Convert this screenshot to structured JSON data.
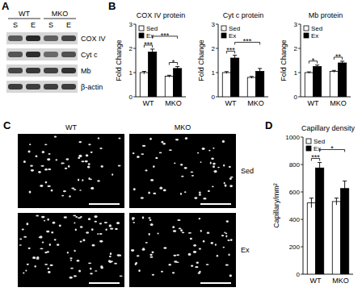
{
  "panel_labels": [
    "A",
    "B",
    "C",
    "D"
  ],
  "panel_a": {
    "groups": [
      "WT",
      "MKO"
    ],
    "lanes": [
      "S",
      "E",
      "S",
      "E"
    ],
    "bands": [
      "COX IV",
      "Cyt c",
      "Mb",
      "β-actin"
    ]
  },
  "panel_c": {
    "columns": [
      "WT",
      "MKO"
    ],
    "rows": [
      "Sed",
      "Ex"
    ]
  },
  "chart_data": [
    {
      "type": "bar",
      "title": "COX IV protein",
      "y_label": "Fold Change",
      "categories": [
        "WT",
        "MKO"
      ],
      "series": [
        {
          "name": "Sed",
          "color": "#ffffff",
          "values": [
            1.0,
            0.85
          ],
          "errors": [
            0.05,
            0.04
          ]
        },
        {
          "name": "Ex",
          "color": "#000000",
          "values": [
            1.85,
            1.17
          ],
          "errors": [
            0.12,
            0.08
          ]
        }
      ],
      "ylim": [
        0,
        3
      ],
      "yticks": [
        0,
        1,
        2,
        3
      ],
      "grid": false,
      "legend": "upper left",
      "annotations": [
        {
          "text": "***",
          "from": [
            "WT",
            "Sed"
          ],
          "to": [
            "WT",
            "Ex"
          ]
        },
        {
          "text": "***",
          "from": [
            "WT",
            "Ex"
          ],
          "to": [
            "MKO",
            "Ex"
          ]
        },
        {
          "text": "*",
          "from": [
            "MKO",
            "Sed"
          ],
          "to": [
            "MKO",
            "Ex"
          ]
        }
      ]
    },
    {
      "type": "bar",
      "title": "Cyt c protein",
      "y_label": "Fold Change",
      "categories": [
        "WT",
        "MKO"
      ],
      "series": [
        {
          "name": "Sed",
          "color": "#ffffff",
          "values": [
            1.0,
            0.8
          ],
          "errors": [
            0.04,
            0.04
          ]
        },
        {
          "name": "Ex",
          "color": "#000000",
          "values": [
            1.6,
            1.05
          ],
          "errors": [
            0.12,
            0.12
          ]
        }
      ],
      "ylim": [
        0,
        3
      ],
      "yticks": [
        0,
        1,
        2,
        3
      ],
      "grid": false,
      "legend": "upper left",
      "annotations": [
        {
          "text": "***",
          "from": [
            "WT",
            "Sed"
          ],
          "to": [
            "WT",
            "Ex"
          ]
        },
        {
          "text": "***",
          "from": [
            "WT",
            "Ex"
          ],
          "to": [
            "MKO",
            "Ex"
          ]
        }
      ]
    },
    {
      "type": "bar",
      "title": "Mb protein",
      "y_label": "Fold Change",
      "categories": [
        "WT",
        "MKO"
      ],
      "series": [
        {
          "name": "Sed",
          "color": "#ffffff",
          "values": [
            1.0,
            1.05
          ],
          "errors": [
            0.03,
            0.04
          ]
        },
        {
          "name": "Ex",
          "color": "#000000",
          "values": [
            1.25,
            1.4
          ],
          "errors": [
            0.06,
            0.07
          ]
        }
      ],
      "ylim": [
        0,
        3
      ],
      "yticks": [
        0,
        1,
        2,
        3
      ],
      "grid": false,
      "legend": "upper left",
      "annotations": [
        {
          "text": "*",
          "from": [
            "WT",
            "Sed"
          ],
          "to": [
            "WT",
            "Ex"
          ]
        },
        {
          "text": "**",
          "from": [
            "MKO",
            "Sed"
          ],
          "to": [
            "MKO",
            "Ex"
          ]
        }
      ]
    },
    {
      "type": "bar",
      "title": "Capillary density",
      "y_label": "Capillary/mm²",
      "categories": [
        "WT",
        "MKO"
      ],
      "series": [
        {
          "name": "Sed",
          "color": "#ffffff",
          "values": [
            520,
            530
          ],
          "errors": [
            35,
            25
          ]
        },
        {
          "name": "Ex",
          "color": "#000000",
          "values": [
            775,
            625
          ],
          "errors": [
            40,
            55
          ]
        }
      ],
      "ylim": [
        0,
        1000
      ],
      "yticks": [
        0,
        200,
        400,
        600,
        800,
        1000
      ],
      "grid": false,
      "legend": "upper left",
      "annotations": [
        {
          "text": "***",
          "from": [
            "WT",
            "Sed"
          ],
          "to": [
            "WT",
            "Ex"
          ]
        },
        {
          "text": "*",
          "from": [
            "WT",
            "Ex"
          ],
          "to": [
            "MKO",
            "Ex"
          ]
        }
      ]
    }
  ]
}
